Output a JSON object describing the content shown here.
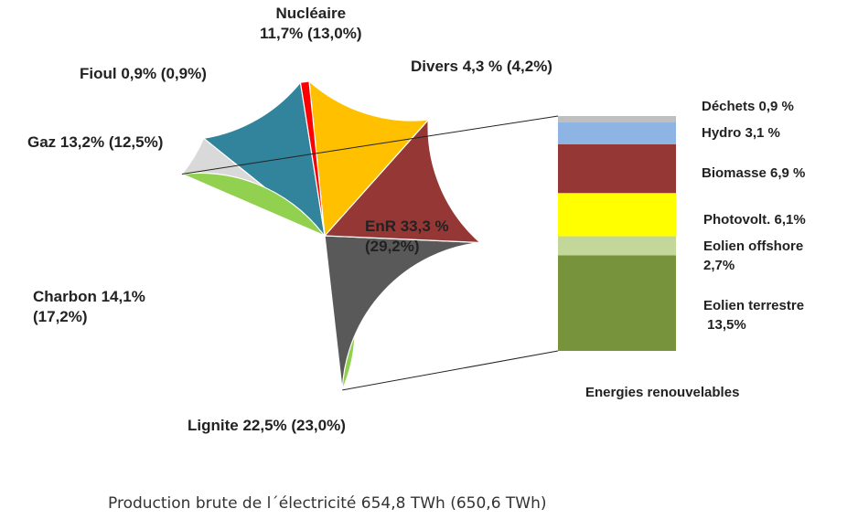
{
  "chart_data": [
    {
      "type": "pie",
      "title": "Production brute de l´électricité 654,8 TWh (650,6 TWh)",
      "slices": [
        {
          "name": "Nucléaire",
          "value": 11.7,
          "value_prev": 13.0,
          "color": "#31849B",
          "label_lines": [
            "Nucléaire",
            "11,7% (13,0%)"
          ]
        },
        {
          "name": "Divers",
          "value": 4.3,
          "value_prev": 4.2,
          "color": "#D9D9D9",
          "label_lines": [
            "Divers 4,3 % (4,2%)"
          ]
        },
        {
          "name": "EnR",
          "value": 33.3,
          "value_prev": 29.2,
          "color": "#92D050",
          "label_lines": [
            "EnR 33,3 %",
            "(29,2%)"
          ]
        },
        {
          "name": "Lignite",
          "value": 22.5,
          "value_prev": 23.0,
          "color": "#595959",
          "label_lines": [
            "Lignite 22,5% (23,0%)"
          ]
        },
        {
          "name": "Charbon",
          "value": 14.1,
          "value_prev": 17.2,
          "color": "#953735",
          "label_lines": [
            "Charbon 14,1%",
            "(17,2%)"
          ]
        },
        {
          "name": "Gaz",
          "value": 13.2,
          "value_prev": 12.5,
          "color": "#FFC000",
          "label_lines": [
            "Gaz 13,2% (12,5%)"
          ]
        },
        {
          "name": "Fioul",
          "value": 0.9,
          "value_prev": 0.9,
          "color": "#FF0000",
          "label_lines": [
            "Fioul 0,9% (0,9%)"
          ]
        }
      ]
    },
    {
      "type": "bar",
      "stacked": true,
      "title": "Energies renouvelables",
      "segments": [
        {
          "name": "Déchets",
          "value": 0.9,
          "color": "#BFBFBF",
          "label_lines": [
            "Déchets 0,9 %"
          ]
        },
        {
          "name": "Hydro",
          "value": 3.1,
          "color": "#8DB4E2",
          "label_lines": [
            "Hydro  3,1 %"
          ]
        },
        {
          "name": "Biomasse",
          "value": 6.9,
          "color": "#953735",
          "label_lines": [
            "Biomasse  6,9 %"
          ]
        },
        {
          "name": "Photovolt.",
          "value": 6.1,
          "color": "#FFFF00",
          "label_lines": [
            "Photovolt.   6,1%"
          ]
        },
        {
          "name": "Eolien offshore",
          "value": 2.7,
          "color": "#C4D79B",
          "label_lines": [
            "Eolien offshore",
            "2,7%"
          ]
        },
        {
          "name": "Eolien terrestre",
          "value": 13.5,
          "color": "#77933C",
          "label_lines": [
            "Eolien terrestre",
            " 13,5%"
          ]
        }
      ]
    }
  ]
}
